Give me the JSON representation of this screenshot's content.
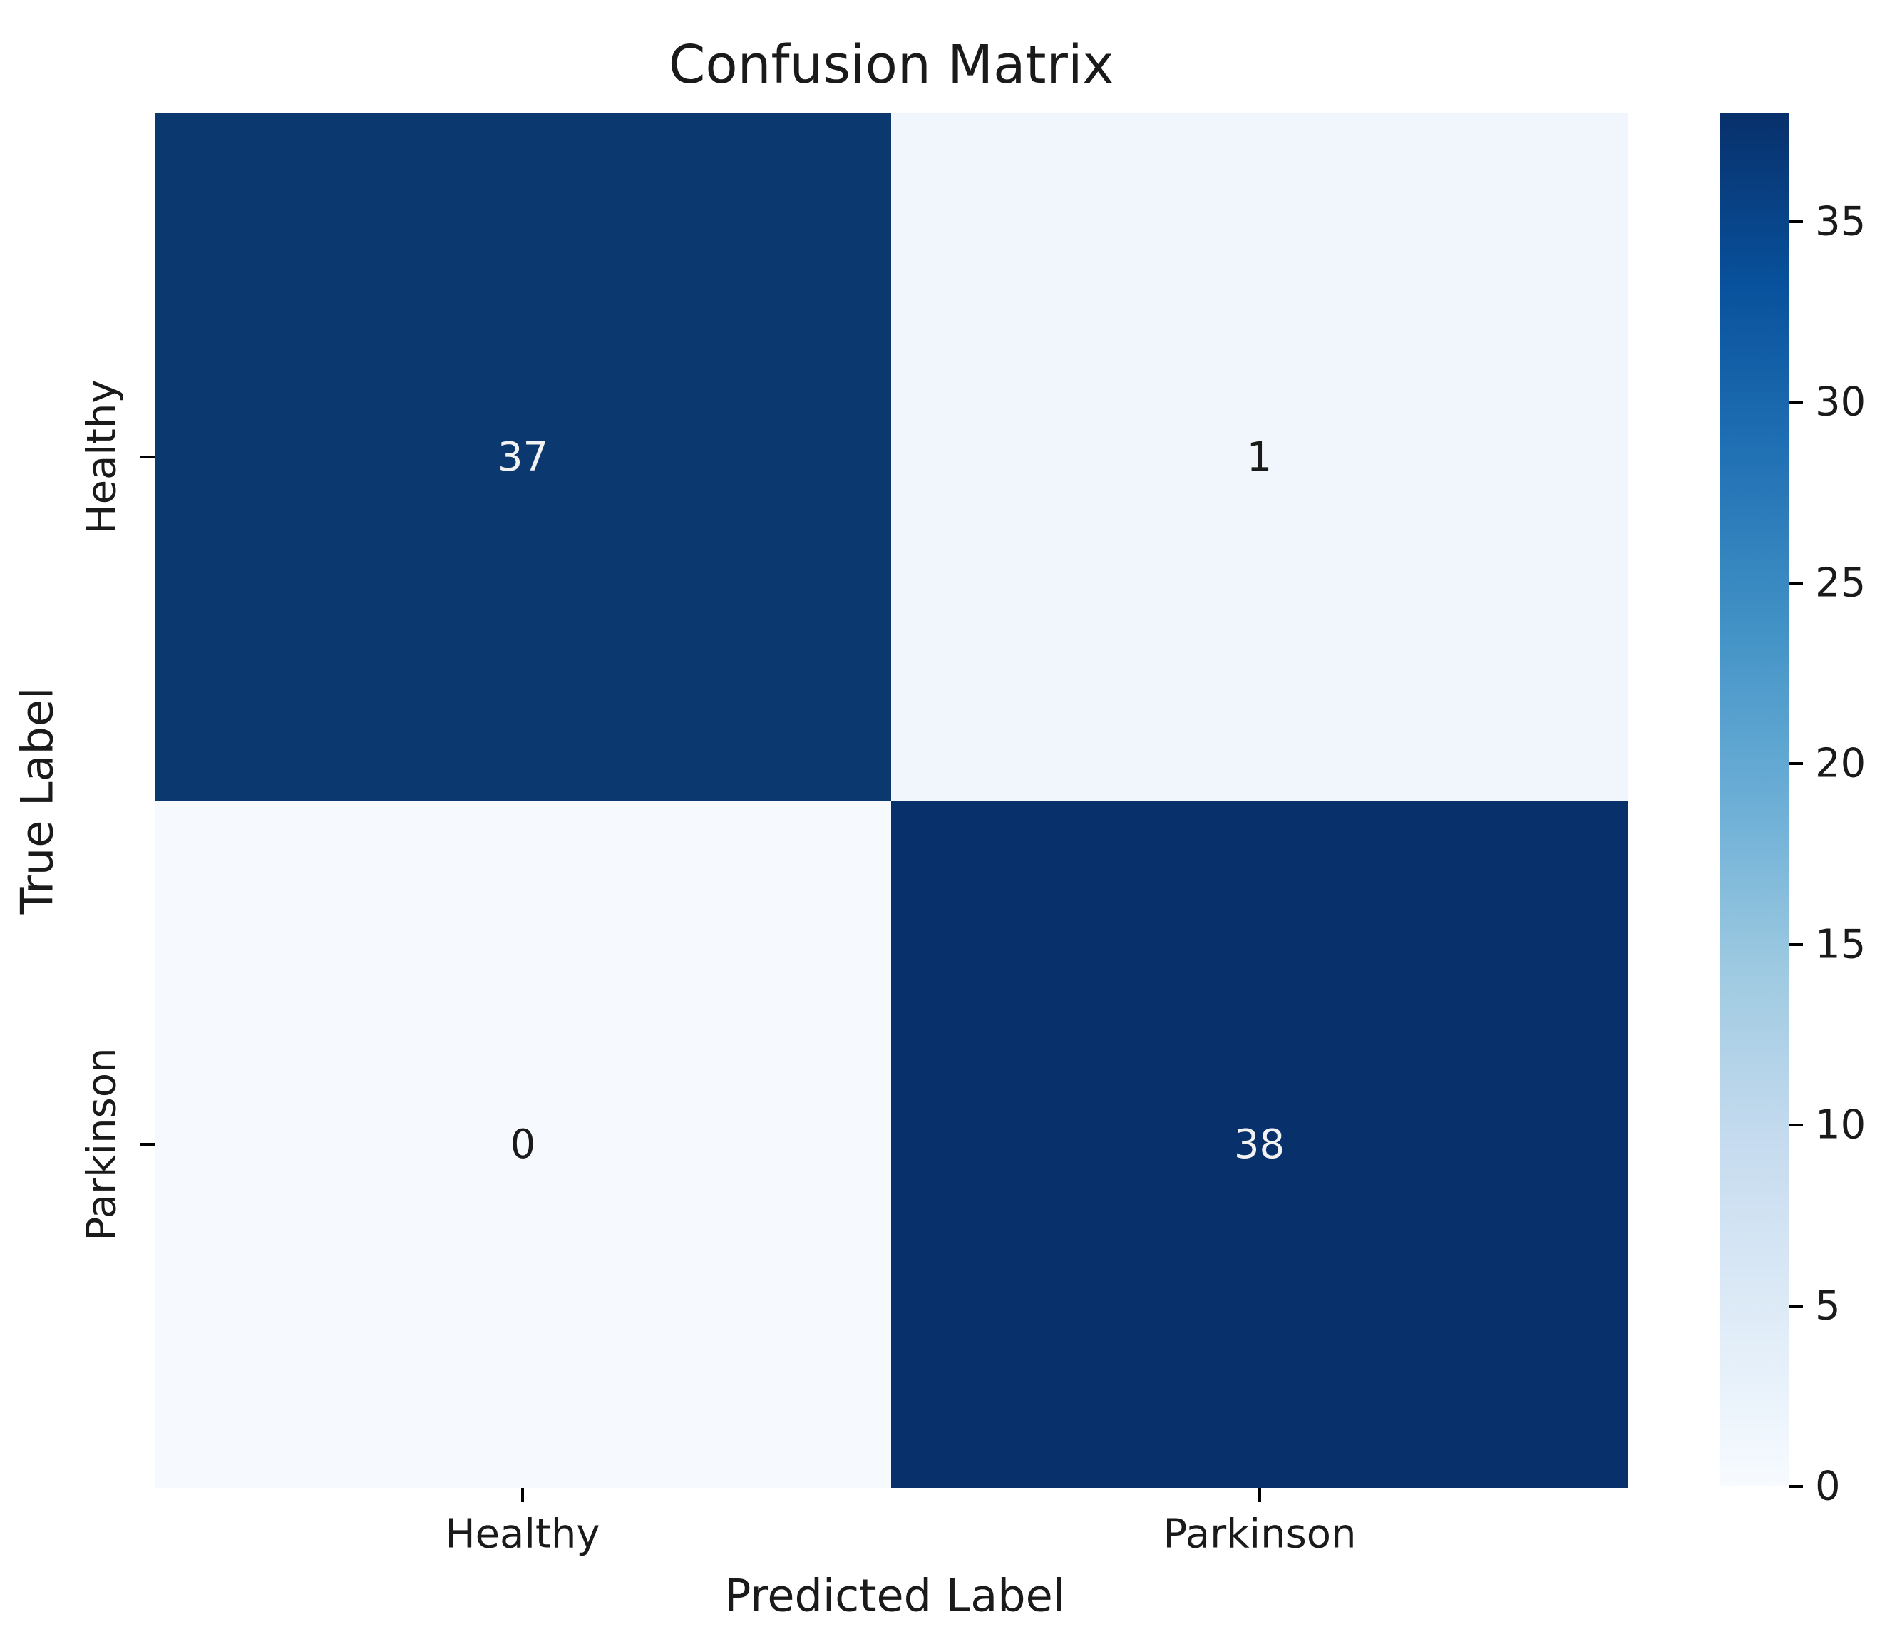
{
  "chart_data": {
    "type": "heatmap",
    "title": "Confusion Matrix",
    "xlabel": "Predicted Label",
    "ylabel": "True Label",
    "x_categories": [
      "Healthy",
      "Parkinson"
    ],
    "y_categories": [
      "Healthy",
      "Parkinson"
    ],
    "values": [
      [
        37,
        1
      ],
      [
        0,
        38
      ]
    ],
    "colormap": "Blues",
    "vmin": 0,
    "vmax": 38,
    "colorbar_ticks": [
      0,
      5,
      10,
      15,
      20,
      25,
      30,
      35
    ],
    "cells": [
      {
        "row": 0,
        "col": 0,
        "value": "37",
        "bg": "#0b386e",
        "fg": "#f2f2f2"
      },
      {
        "row": 0,
        "col": 1,
        "value": "1",
        "bg": "#f1f6fc",
        "fg": "#1a1a1a"
      },
      {
        "row": 1,
        "col": 0,
        "value": "0",
        "bg": "#f6fafe",
        "fg": "#1a1a1a"
      },
      {
        "row": 1,
        "col": 1,
        "value": "38",
        "bg": "#08306b",
        "fg": "#f2f2f2"
      }
    ],
    "colorbar_gradient": [
      "#f7fbff",
      "#deebf7",
      "#c6dbef",
      "#9ecae1",
      "#6baed6",
      "#4292c6",
      "#2171b5",
      "#08519c",
      "#08306b"
    ],
    "legend_position": "right",
    "grid": false
  }
}
